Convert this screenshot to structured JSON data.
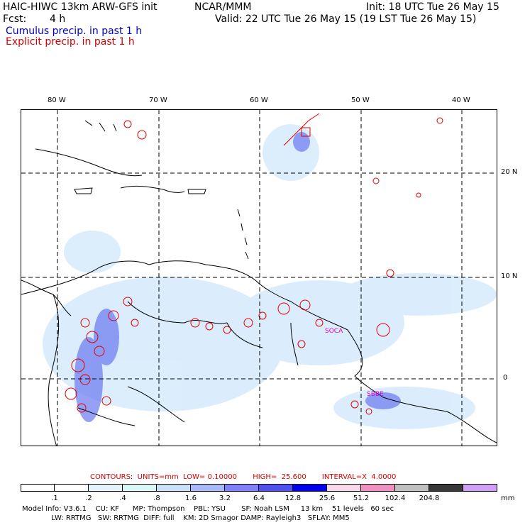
{
  "header": {
    "model_title": "HAIC-HIWC 13km ARW-GFS init",
    "org": "NCAR/MMM",
    "init": "Init: 18 UTC Tue 26 May 15",
    "fcst_label": "Fcst:",
    "fcst_value": "4 h",
    "valid": "Valid: 22 UTC Tue 26 May 15 (19 LST Tue 26 May 15)",
    "cumulus": "Cumulus precip. in past 1 h",
    "explicit": "Explicit precip. in past 1 h"
  },
  "axes": {
    "lon_labels": [
      "80 W",
      "70 W",
      "60 W",
      "50 W",
      "40 W"
    ],
    "lat_labels": [
      "20 N",
      "10 N",
      "0"
    ]
  },
  "stations": [
    "SOCA",
    "SBBE"
  ],
  "contours": {
    "text": "CONTOURS:  UNITS=mm  LOW= 0.10000       HIGH=  25.600       INTERVAL=X  4.0000"
  },
  "colorbar": {
    "levels": [
      ".1",
      ".2",
      ".4",
      ".8",
      "1.6",
      "3.2",
      "6.4",
      "12.8",
      "25.6",
      "51.2",
      "102.4",
      "204.8"
    ],
    "units": "mm",
    "colors": [
      "#ffffff",
      "#ffffff",
      "#e4f4ff",
      "#d8f8f8",
      "#c8e0f8",
      "#a8b8f8",
      "#8080f8",
      "#5050f0",
      "#0000f0",
      "#f8d8e8",
      "#f090c0",
      "#c0c0c0",
      "#383838",
      "#d0a0f8"
    ]
  },
  "model_info": {
    "line1": "Model Info: V3.6.1    CU: KF      MP: Thompson    PBL: YSU       SF: Noah LSM     13 km    51 levels   60 sec",
    "line2": "             LW: RRTMG   SW: RRTMG  DIFF: full    KM: 2D Smagor DAMP: Rayleigh3   SFLAY: MM5"
  }
}
